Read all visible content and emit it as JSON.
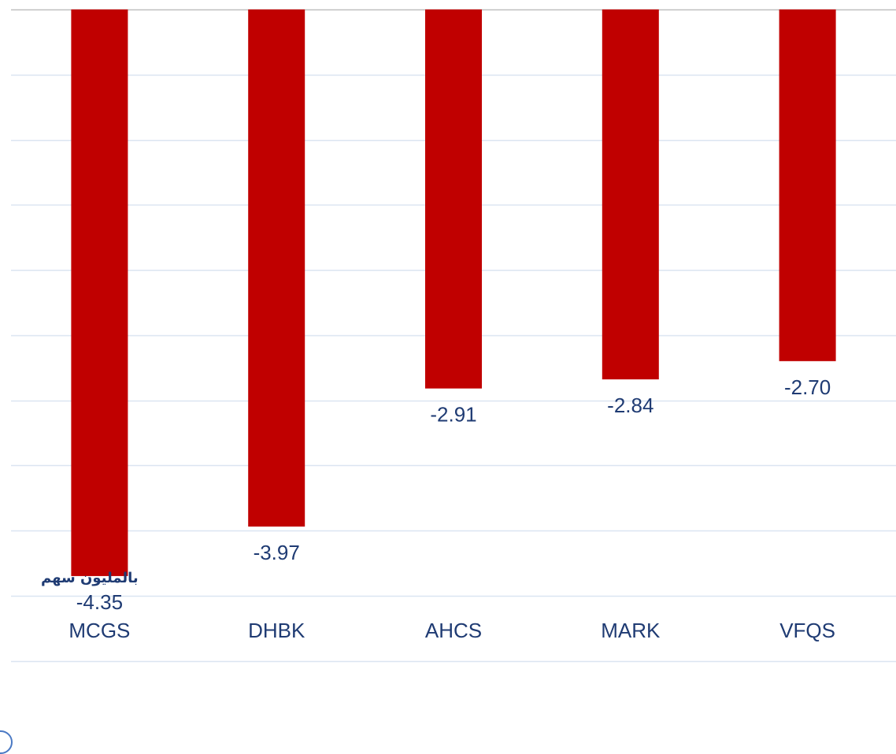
{
  "chart_data": {
    "type": "bar",
    "categories": [
      "MCGS",
      "DHBK",
      "AHCS",
      "MARK",
      "VFQS"
    ],
    "values": [
      -4.35,
      -3.97,
      -2.91,
      -2.84,
      -2.7
    ],
    "value_labels": [
      "-4.35",
      "-3.97",
      "-2.91",
      "-2.84",
      "-2.70"
    ],
    "title": "",
    "xlabel": "",
    "ylabel": "",
    "ylim": [
      -5,
      0
    ],
    "grid": true,
    "legend": "none",
    "unit_note": "بالمليون سهم",
    "colors": {
      "bar": "#c00000",
      "grid": "#dbe5f1",
      "axis": "#bfbfbf",
      "label": "#1f3b73",
      "unit": "#1f3b73"
    }
  }
}
